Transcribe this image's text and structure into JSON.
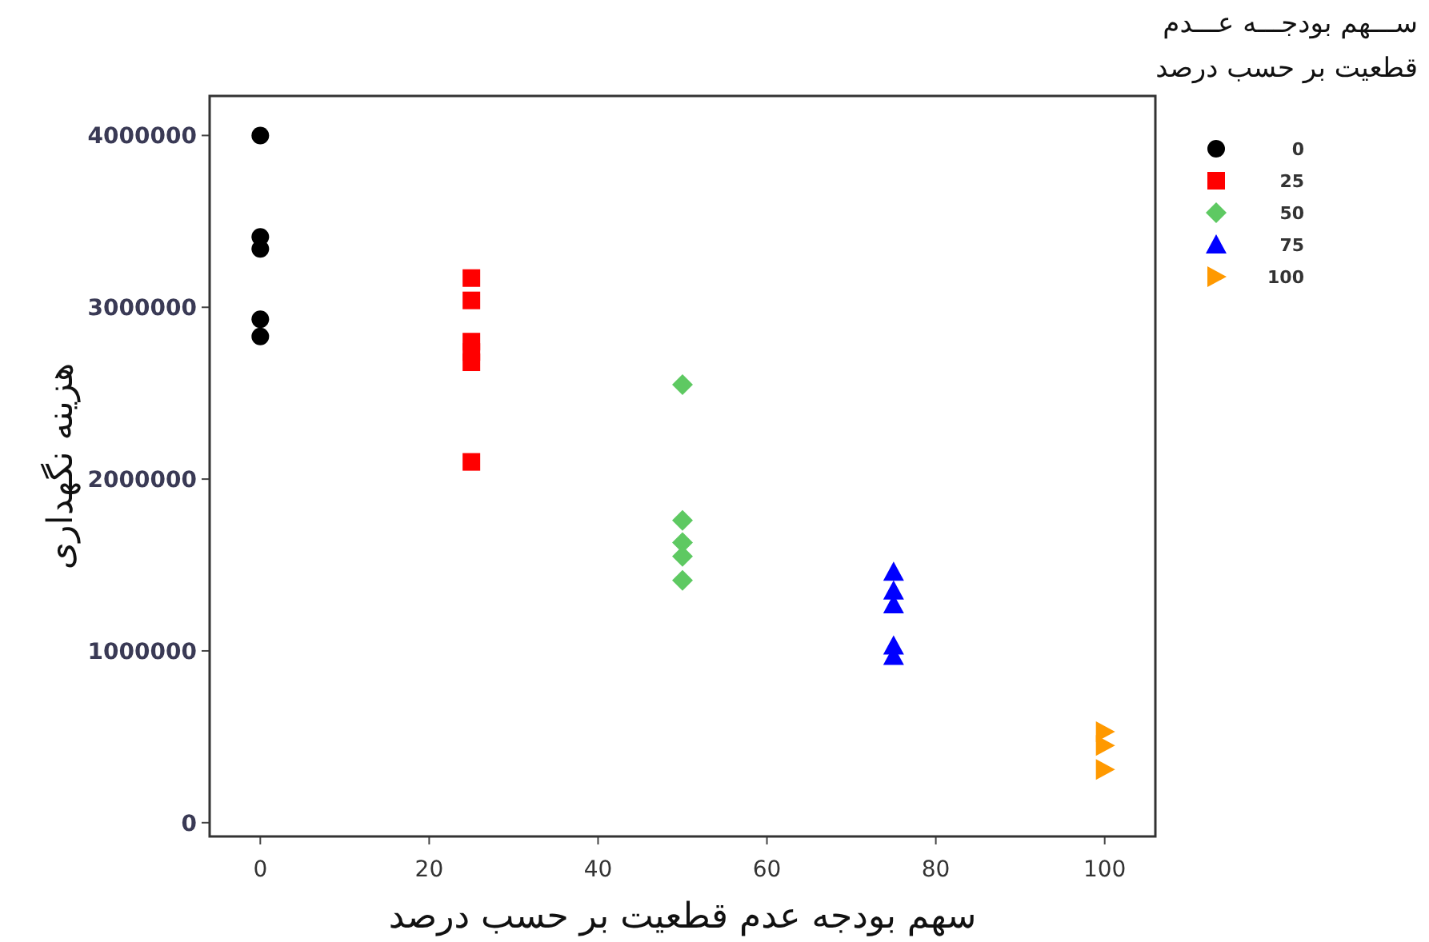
{
  "chart_data": {
    "type": "scatter",
    "xlabel": "سهم بودجه عدم قطعیت بر حسب درصد",
    "ylabel": "هزینه نگهداری",
    "legend_title": "ســـهم بودجـــه عـــدم\nقطعیت بر حسب درصد",
    "xlim": [
      -6,
      106
    ],
    "xticks": [
      0,
      20,
      40,
      60,
      80,
      100
    ],
    "ylim": [
      -80000,
      4230000
    ],
    "yticks": [
      0,
      1000000,
      2000000,
      3000000,
      4000000
    ],
    "grid": false,
    "legend": "top right",
    "series": [
      {
        "name": "0",
        "color": "#000000",
        "marker": "circle",
        "x": [
          0,
          0,
          0,
          0,
          0
        ],
        "values": [
          4000000,
          3410000,
          3340000,
          2930000,
          2830000
        ]
      },
      {
        "name": "25",
        "color": "#ff0000",
        "marker": "square",
        "x": [
          25,
          25,
          25,
          25,
          25,
          25
        ],
        "values": [
          3170000,
          3040000,
          2800000,
          2740000,
          2680000,
          2100000
        ]
      },
      {
        "name": "50",
        "color": "#5ec962",
        "marker": "diamond",
        "x": [
          50,
          50,
          50,
          50,
          50
        ],
        "values": [
          2550000,
          1760000,
          1630000,
          1550000,
          1410000
        ]
      },
      {
        "name": "75",
        "color": "#0000ff",
        "marker": "triangle",
        "x": [
          75,
          75,
          75,
          75,
          75
        ],
        "values": [
          1460000,
          1350000,
          1270000,
          1030000,
          970000
        ]
      },
      {
        "name": "100",
        "color": "#ff9900",
        "marker": "triangle-right",
        "x": [
          100,
          100,
          100
        ],
        "values": [
          530000,
          450000,
          310000
        ]
      }
    ]
  }
}
